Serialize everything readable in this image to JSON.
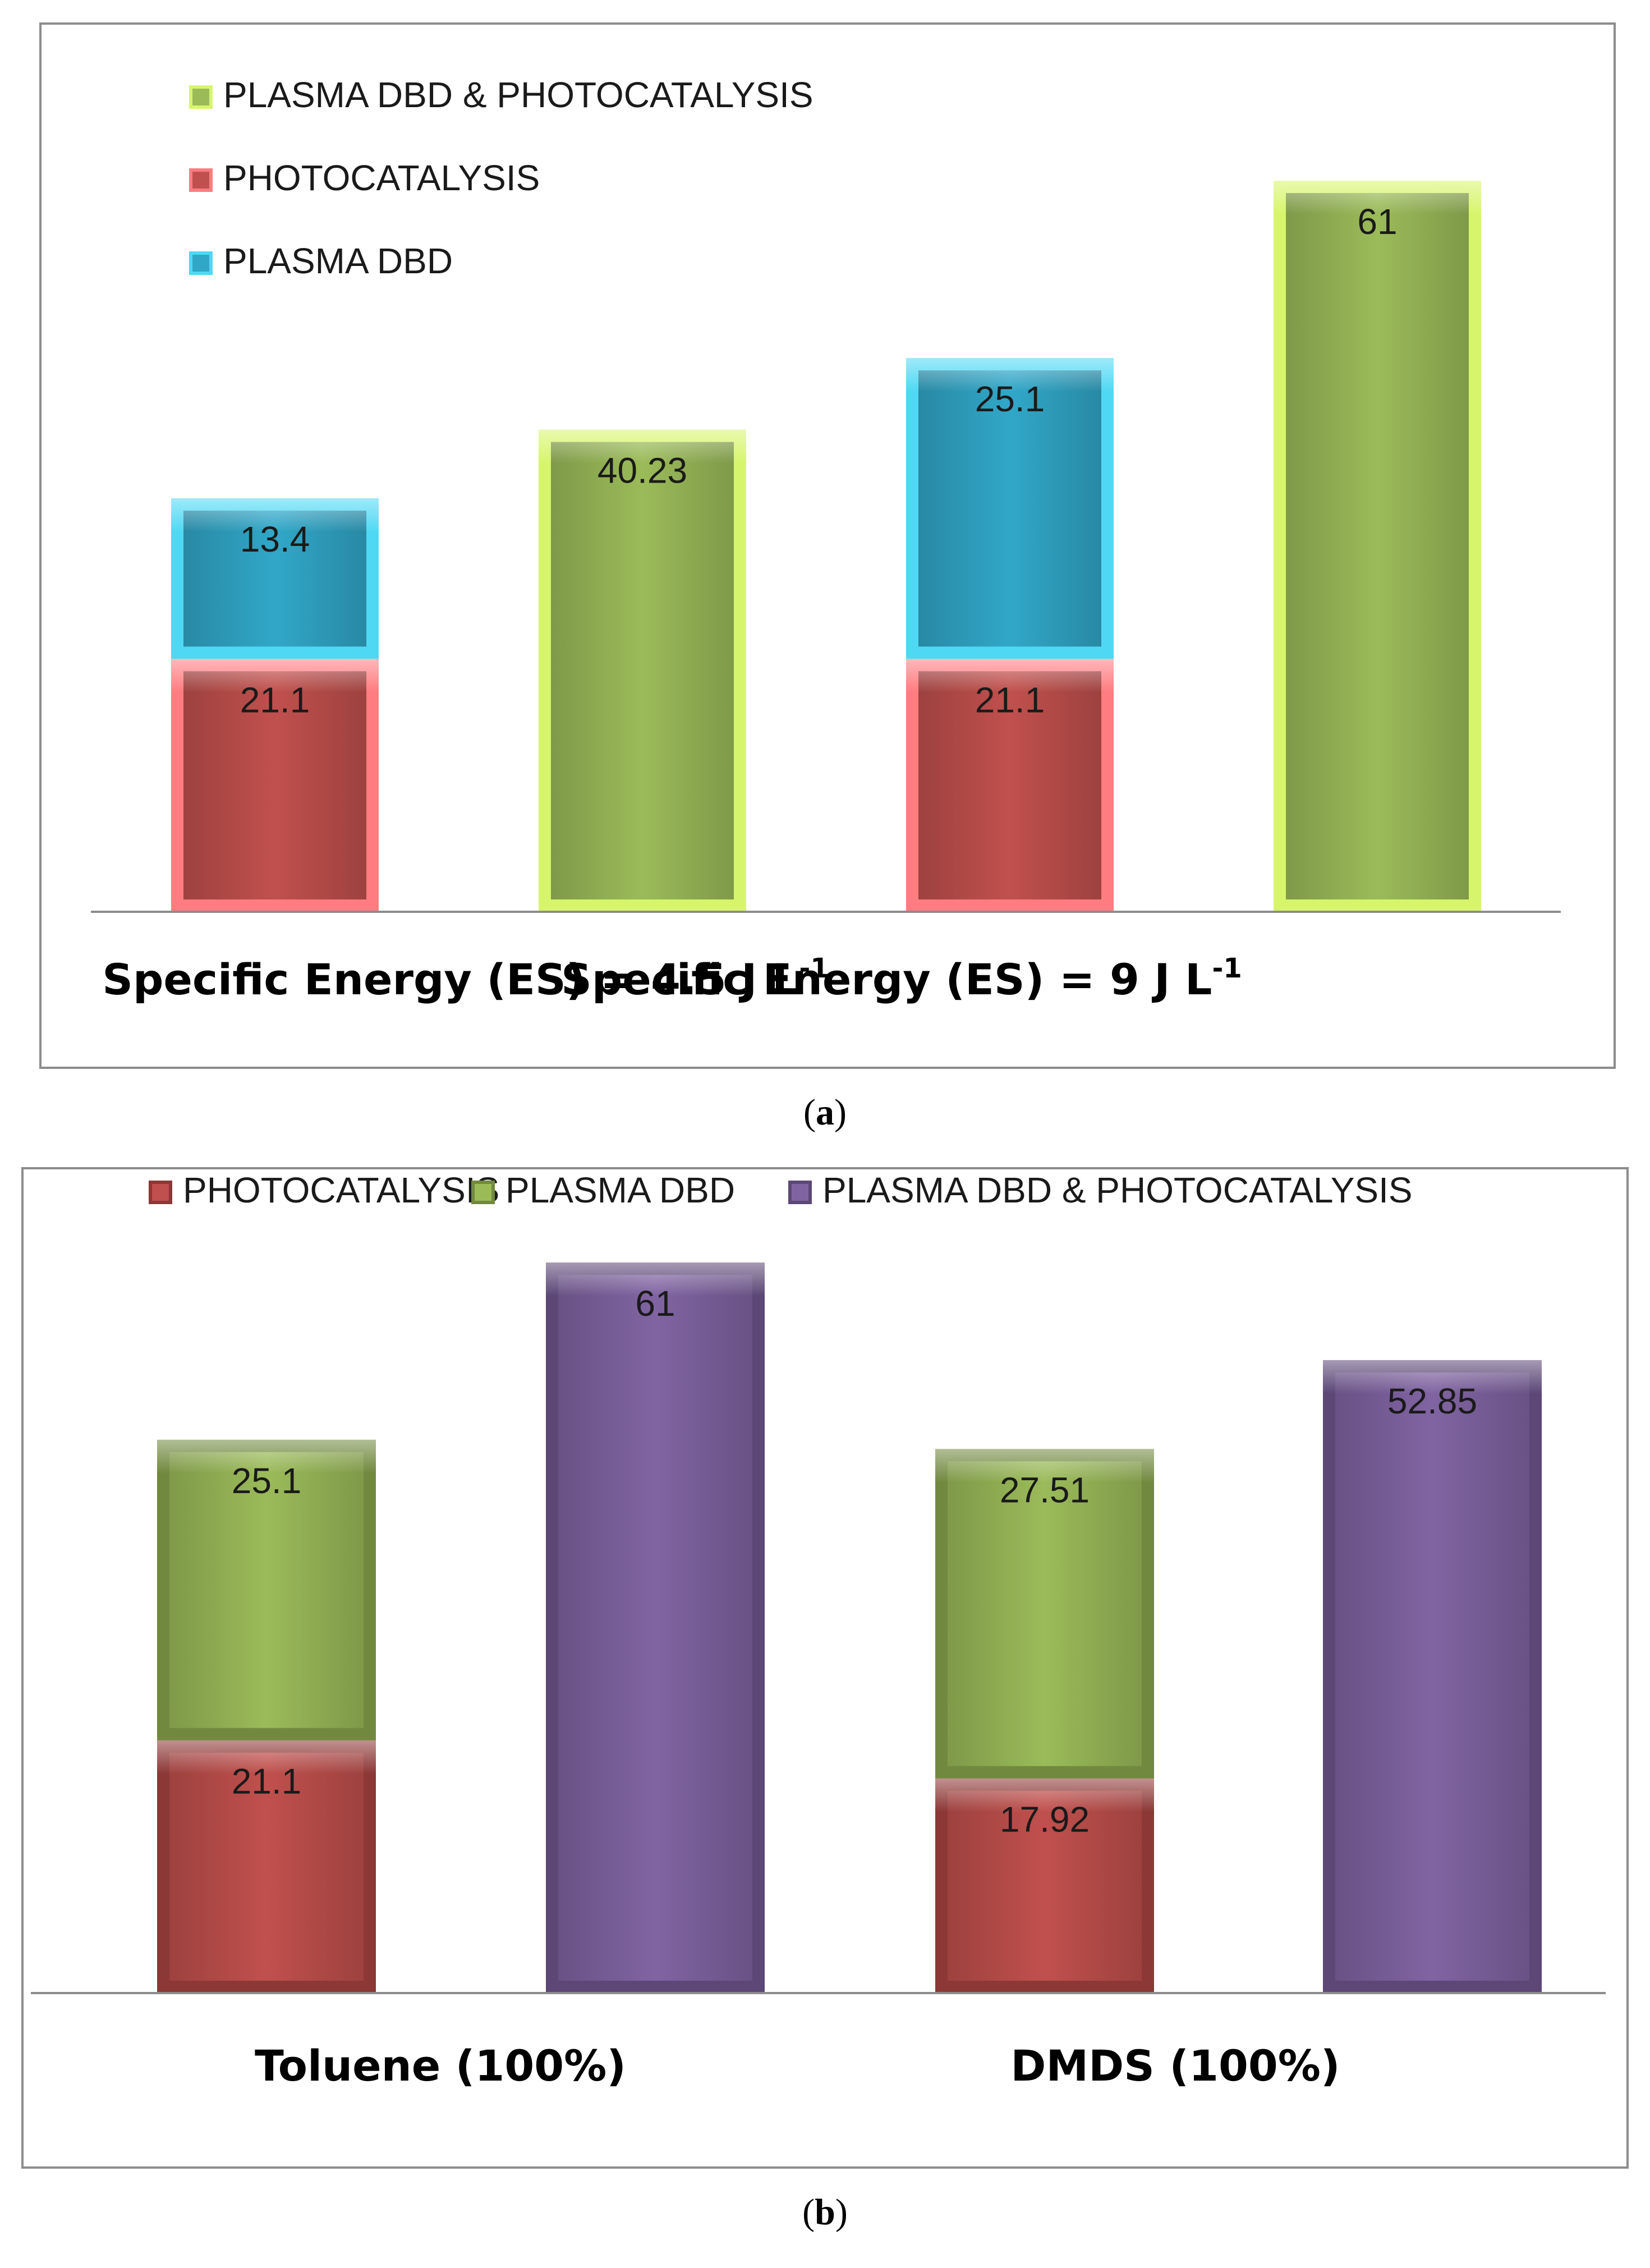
{
  "chart_data": [
    {
      "type": "bar",
      "stacked": true,
      "panel_label": "a",
      "categories": [
        "Specific Energy (ES) = 4.5 J L",
        "Specific Energy (ES) = 9 J L"
      ],
      "category_superscripts": [
        "-1",
        "-1"
      ],
      "legend_order": [
        "PLASMA DBD & PHOTOCATALYSIS",
        "PHOTOCATALYSIS",
        "PLASMA DBD"
      ],
      "legend_position": "top-left",
      "series_colors": {
        "PHOTOCATALYSIS": {
          "fill": "#c0504d",
          "edge": "#ff7c80"
        },
        "PLASMA DBD": {
          "fill": "#31a7c8",
          "edge": "#4fd8f4"
        },
        "PLASMA DBD & PHOTOCATALYSIS": {
          "fill": "#9bbb59",
          "edge": "#d7f56c"
        }
      },
      "groups": [
        {
          "category": 0,
          "stack": [
            {
              "series": "PHOTOCATALYSIS",
              "value": 21.1,
              "label": "21.1"
            },
            {
              "series": "PLASMA DBD",
              "value": 13.4,
              "label": "13.4"
            }
          ]
        },
        {
          "category": 0,
          "stack": [
            {
              "series": "PLASMA DBD & PHOTOCATALYSIS",
              "value": 40.23,
              "label": "40.23"
            }
          ]
        },
        {
          "category": 1,
          "stack": [
            {
              "series": "PHOTOCATALYSIS",
              "value": 21.1,
              "label": "21.1"
            },
            {
              "series": "PLASMA DBD",
              "value": 25.1,
              "label": "25.1"
            }
          ]
        },
        {
          "category": 1,
          "stack": [
            {
              "series": "PLASMA DBD & PHOTOCATALYSIS",
              "value": 61,
              "label": "61"
            }
          ]
        }
      ],
      "ylim": [
        0,
        61
      ],
      "grid": false
    },
    {
      "type": "bar",
      "stacked": true,
      "panel_label": "b",
      "categories": [
        "Toluene (100%)",
        "DMDS (100%)"
      ],
      "legend_order": [
        "PHOTOCATALYSIS",
        "PLASMA DBD",
        "PLASMA DBD & PHOTOCATALYSIS"
      ],
      "legend_position": "top",
      "series_colors": {
        "PHOTOCATALYSIS": {
          "fill": "#c0504d",
          "edge": "#8c3836"
        },
        "PLASMA DBD": {
          "fill": "#9bbb59",
          "edge": "#71893f"
        },
        "PLASMA DBD & PHOTOCATALYSIS": {
          "fill": "#8064a2",
          "edge": "#5c4776"
        }
      },
      "groups": [
        {
          "category": 0,
          "stack": [
            {
              "series": "PHOTOCATALYSIS",
              "value": 21.1,
              "label": "21.1"
            },
            {
              "series": "PLASMA DBD",
              "value": 25.1,
              "label": "25.1"
            }
          ]
        },
        {
          "category": 0,
          "stack": [
            {
              "series": "PLASMA DBD & PHOTOCATALYSIS",
              "value": 61,
              "label": "61"
            }
          ]
        },
        {
          "category": 1,
          "stack": [
            {
              "series": "PHOTOCATALYSIS",
              "value": 17.92,
              "label": "17.92"
            },
            {
              "series": "PLASMA DBD",
              "value": 27.51,
              "label": "27.51"
            }
          ]
        },
        {
          "category": 1,
          "stack": [
            {
              "series": "PLASMA DBD & PHOTOCATALYSIS",
              "value": 52.85,
              "label": "52.85"
            }
          ]
        }
      ],
      "ylim": [
        0,
        61
      ],
      "grid": false
    }
  ]
}
